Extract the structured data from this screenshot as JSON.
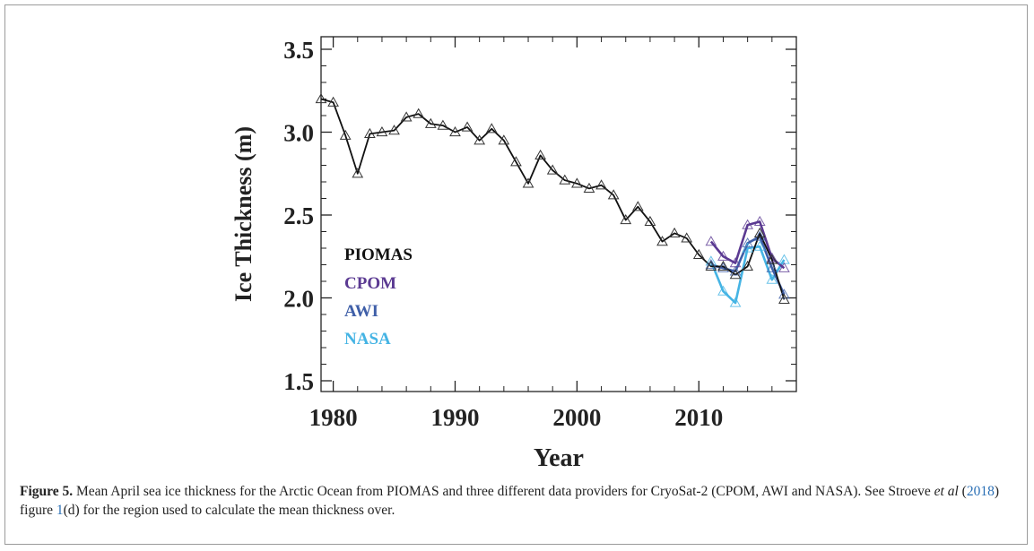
{
  "chart_data": {
    "type": "line",
    "xlabel": "Year",
    "ylabel": "Ice Thickness (m)",
    "xlim": [
      1979,
      2018
    ],
    "ylim": [
      1.5,
      3.5
    ],
    "x_ticks": [
      1980,
      1990,
      2000,
      2010
    ],
    "y_ticks": [
      1.5,
      2.0,
      2.5,
      3.0,
      3.5
    ],
    "y_tick_labels": [
      "1.5",
      "2.0",
      "2.5",
      "3.0",
      "3.5"
    ],
    "grid": false,
    "legend_position": "lower-left inside",
    "series": [
      {
        "name": "PIOMAS",
        "color": "#111111",
        "x": [
          1979,
          1980,
          1981,
          1982,
          1983,
          1984,
          1985,
          1986,
          1987,
          1988,
          1989,
          1990,
          1991,
          1992,
          1993,
          1994,
          1995,
          1996,
          1997,
          1998,
          1999,
          2000,
          2001,
          2002,
          2003,
          2004,
          2005,
          2006,
          2007,
          2008,
          2009,
          2010,
          2011,
          2012,
          2013,
          2014,
          2015,
          2016,
          2017
        ],
        "y": [
          3.2,
          3.18,
          2.98,
          2.75,
          2.99,
          3.0,
          3.01,
          3.09,
          3.11,
          3.05,
          3.04,
          3.0,
          3.03,
          2.95,
          3.02,
          2.95,
          2.82,
          2.69,
          2.86,
          2.77,
          2.71,
          2.69,
          2.66,
          2.68,
          2.62,
          2.47,
          2.55,
          2.46,
          2.34,
          2.39,
          2.36,
          2.26,
          2.19,
          2.19,
          2.14,
          2.19,
          2.39,
          2.23,
          1.99
        ]
      },
      {
        "name": "CPOM",
        "color": "#5b3a92",
        "x": [
          2011,
          2012,
          2013,
          2014,
          2015,
          2016,
          2017
        ],
        "y": [
          2.34,
          2.25,
          2.21,
          2.44,
          2.46,
          2.24,
          2.18
        ]
      },
      {
        "name": "AWI",
        "color": "#3f5fa8",
        "x": [
          2011,
          2012,
          2013,
          2014,
          2015,
          2016,
          2017
        ],
        "y": [
          2.2,
          2.18,
          2.16,
          2.33,
          2.37,
          2.18,
          2.02
        ]
      },
      {
        "name": "NASA",
        "color": "#45b4e4",
        "x": [
          2011,
          2012,
          2013,
          2014,
          2015,
          2016,
          2017
        ],
        "y": [
          2.22,
          2.04,
          1.97,
          2.3,
          2.31,
          2.11,
          2.23
        ]
      }
    ]
  },
  "caption": {
    "label": "Figure 5.",
    "text1": " Mean April sea ice thickness for the Arctic Ocean from PIOMAS and three different data providers for CryoSat-2 (CPOM, AWI and NASA). See Stroeve ",
    "etal": "et al",
    "text2": " (",
    "ref_year": "2018",
    "text3": ") figure ",
    "ref_fig": "1",
    "text4": "(d) for the region used to calculate the mean thickness over."
  }
}
